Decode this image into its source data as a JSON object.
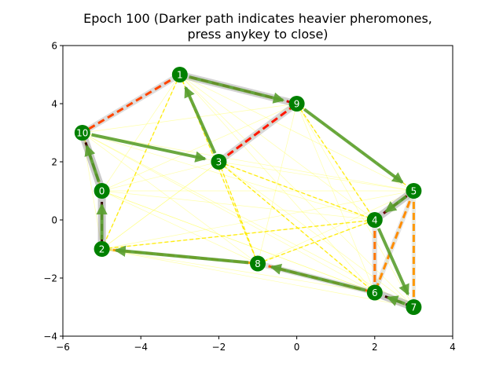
{
  "chart_data": {
    "type": "scatter",
    "title_lines": [
      "Epoch 100 (Darker path indicates heavier pheromones,",
      "press anykey to close)"
    ],
    "xlim": [
      -6,
      4
    ],
    "ylim": [
      -4,
      6
    ],
    "x_ticks": [
      -6,
      -4,
      -2,
      0,
      2,
      4
    ],
    "y_ticks": [
      -4,
      -2,
      0,
      2,
      4,
      6
    ],
    "grid": false,
    "node_color": "#008000",
    "nodes": [
      {
        "label": "0",
        "x": -5.0,
        "y": 1.0
      },
      {
        "label": "1",
        "x": -3.0,
        "y": 5.0
      },
      {
        "label": "2",
        "x": -5.0,
        "y": -1.0
      },
      {
        "label": "3",
        "x": -2.0,
        "y": 2.0
      },
      {
        "label": "4",
        "x": 2.0,
        "y": 0.0
      },
      {
        "label": "5",
        "x": 3.0,
        "y": 1.0
      },
      {
        "label": "6",
        "x": 2.0,
        "y": -2.5
      },
      {
        "label": "7",
        "x": 3.0,
        "y": -3.0
      },
      {
        "label": "8",
        "x": -1.0,
        "y": -1.5
      },
      {
        "label": "9",
        "x": 0.0,
        "y": 4.0
      },
      {
        "label": "10",
        "x": -5.5,
        "y": 3.0
      }
    ],
    "faint_edges": [
      [
        0,
        1
      ],
      [
        0,
        3
      ],
      [
        0,
        4
      ],
      [
        0,
        5
      ],
      [
        0,
        8
      ],
      [
        0,
        9
      ],
      [
        0,
        6
      ],
      [
        0,
        7
      ],
      [
        1,
        2
      ],
      [
        1,
        4
      ],
      [
        1,
        5
      ],
      [
        1,
        6
      ],
      [
        1,
        7
      ],
      [
        1,
        8
      ],
      [
        2,
        3
      ],
      [
        2,
        4
      ],
      [
        2,
        5
      ],
      [
        2,
        6
      ],
      [
        2,
        7
      ],
      [
        2,
        9
      ],
      [
        3,
        4
      ],
      [
        3,
        5
      ],
      [
        3,
        6
      ],
      [
        3,
        7
      ],
      [
        3,
        8
      ],
      [
        4,
        8
      ],
      [
        4,
        9
      ],
      [
        4,
        10
      ],
      [
        5,
        6
      ],
      [
        5,
        7
      ],
      [
        5,
        8
      ],
      [
        5,
        10
      ],
      [
        6,
        9
      ],
      [
        6,
        10
      ],
      [
        7,
        9
      ],
      [
        7,
        10
      ],
      [
        8,
        9
      ],
      [
        8,
        10
      ],
      [
        9,
        10
      ],
      [
        3,
        10
      ],
      [
        2,
        10
      ]
    ],
    "yellow_edges": [
      [
        1,
        2
      ],
      [
        1,
        3
      ],
      [
        1,
        8
      ],
      [
        3,
        8
      ],
      [
        3,
        6
      ],
      [
        3,
        4
      ],
      [
        9,
        5
      ],
      [
        8,
        4
      ],
      [
        4,
        2
      ],
      [
        2,
        8
      ],
      [
        0,
        10
      ],
      [
        9,
        4
      ]
    ],
    "pheromone_edges": [
      {
        "from": 0,
        "to": 2,
        "weight": 1.0
      },
      {
        "from": 0,
        "to": 10,
        "weight": 1.0
      },
      {
        "from": 6,
        "to": 7,
        "weight": 1.0
      },
      {
        "from": 4,
        "to": 5,
        "weight": 0.95
      },
      {
        "from": 1,
        "to": 9,
        "weight": 0.85
      },
      {
        "from": 3,
        "to": 9,
        "weight": 0.75
      },
      {
        "from": 1,
        "to": 10,
        "weight": 0.65
      },
      {
        "from": 8,
        "to": 6,
        "weight": 0.6
      },
      {
        "from": 4,
        "to": 6,
        "weight": 0.55
      },
      {
        "from": 5,
        "to": 6,
        "weight": 0.5
      },
      {
        "from": 5,
        "to": 7,
        "weight": 0.4
      },
      {
        "from": 2,
        "to": 8,
        "weight": 0.3
      }
    ],
    "path": [
      10,
      3,
      1,
      9,
      5,
      4,
      7,
      6,
      8,
      2,
      0,
      10
    ],
    "path_color": "#5a9e2f"
  }
}
